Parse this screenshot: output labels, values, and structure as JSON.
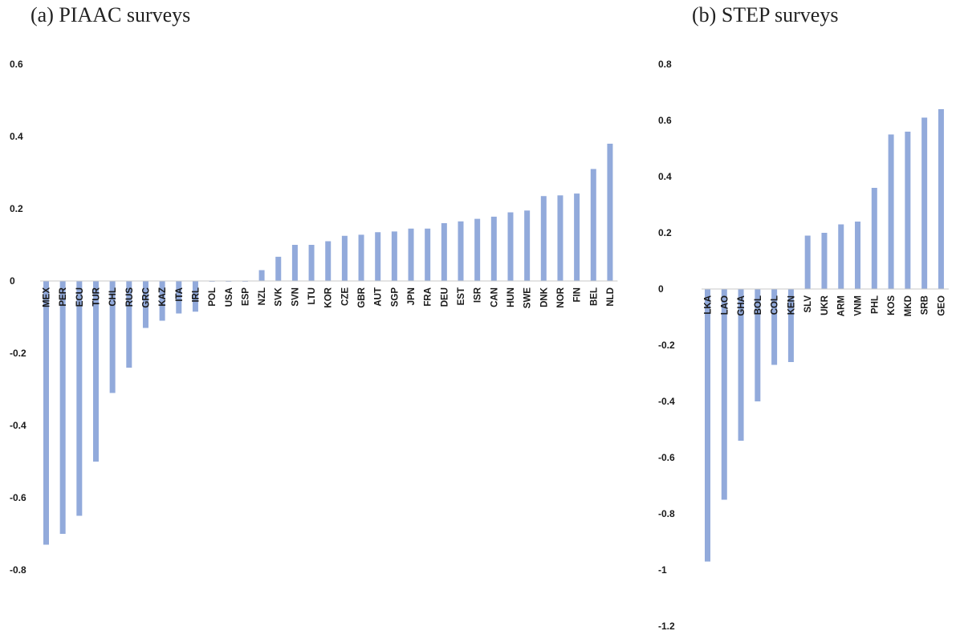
{
  "panels": {
    "a": {
      "title": "(a)   PIAAC surveys"
    },
    "b": {
      "title": "(b)   STEP surveys"
    }
  },
  "colors": {
    "bar": "#92aadb",
    "axis": "#c9c9c9",
    "text": "#1a1a1a"
  },
  "chart_data": [
    {
      "type": "bar",
      "title": "(a)   PIAAC surveys",
      "xlabel": "",
      "ylabel": "",
      "ylim": [
        -0.8,
        0.6
      ],
      "yticks": [
        0.6,
        0.4,
        0.2,
        0,
        -0.2,
        -0.4,
        -0.6,
        -0.8
      ],
      "ytick_labels": [
        "0.6",
        "0.4",
        "0.2",
        "0",
        "-0.2",
        "-0.4",
        "-0.6",
        "-0.8"
      ],
      "grid": false,
      "categories": [
        "MEX",
        "PER",
        "ECU",
        "TUR",
        "CHL",
        "RUS",
        "GRC",
        "KAZ",
        "ITA",
        "IRL",
        "POL",
        "USA",
        "ESP",
        "NZL",
        "SVK",
        "SVN",
        "LTU",
        "KOR",
        "CZE",
        "GBR",
        "AUT",
        "SGP",
        "JPN",
        "FRA",
        "DEU",
        "EST",
        "ISR",
        "CAN",
        "HUN",
        "SWE",
        "DNK",
        "NOR",
        "FIN",
        "BEL",
        "NLD"
      ],
      "values": [
        -0.73,
        -0.7,
        -0.65,
        -0.5,
        -0.31,
        -0.24,
        -0.13,
        -0.11,
        -0.09,
        -0.085,
        -0.002,
        -0.002,
        -0.002,
        0.03,
        0.067,
        0.1,
        0.1,
        0.11,
        0.125,
        0.128,
        0.135,
        0.137,
        0.145,
        0.145,
        0.16,
        0.165,
        0.172,
        0.178,
        0.19,
        0.195,
        0.235,
        0.237,
        0.242,
        0.31,
        0.38
      ]
    },
    {
      "type": "bar",
      "title": "(b)   STEP surveys",
      "xlabel": "",
      "ylabel": "",
      "ylim": [
        -1.2,
        0.8
      ],
      "yticks": [
        0.8,
        0.6,
        0.4,
        0.2,
        0,
        -0.2,
        -0.4,
        -0.6,
        -0.8,
        -1,
        -1.2
      ],
      "ytick_labels": [
        "0.8",
        "0.6",
        "0.4",
        "0.2",
        "0",
        "-0.2",
        "-0.4",
        "-0.6",
        "-0.8",
        "-1",
        "-1.2"
      ],
      "grid": false,
      "categories": [
        "LKA",
        "LAO",
        "GHA",
        "BOL",
        "COL",
        "KEN",
        "SLV",
        "UKR",
        "ARM",
        "VNM",
        "PHL",
        "KOS",
        "MKD",
        "SRB",
        "GEO"
      ],
      "values": [
        -0.97,
        -0.75,
        -0.54,
        -0.4,
        -0.27,
        -0.26,
        0.19,
        0.2,
        0.23,
        0.24,
        0.36,
        0.55,
        0.56,
        0.61,
        0.64
      ]
    }
  ]
}
